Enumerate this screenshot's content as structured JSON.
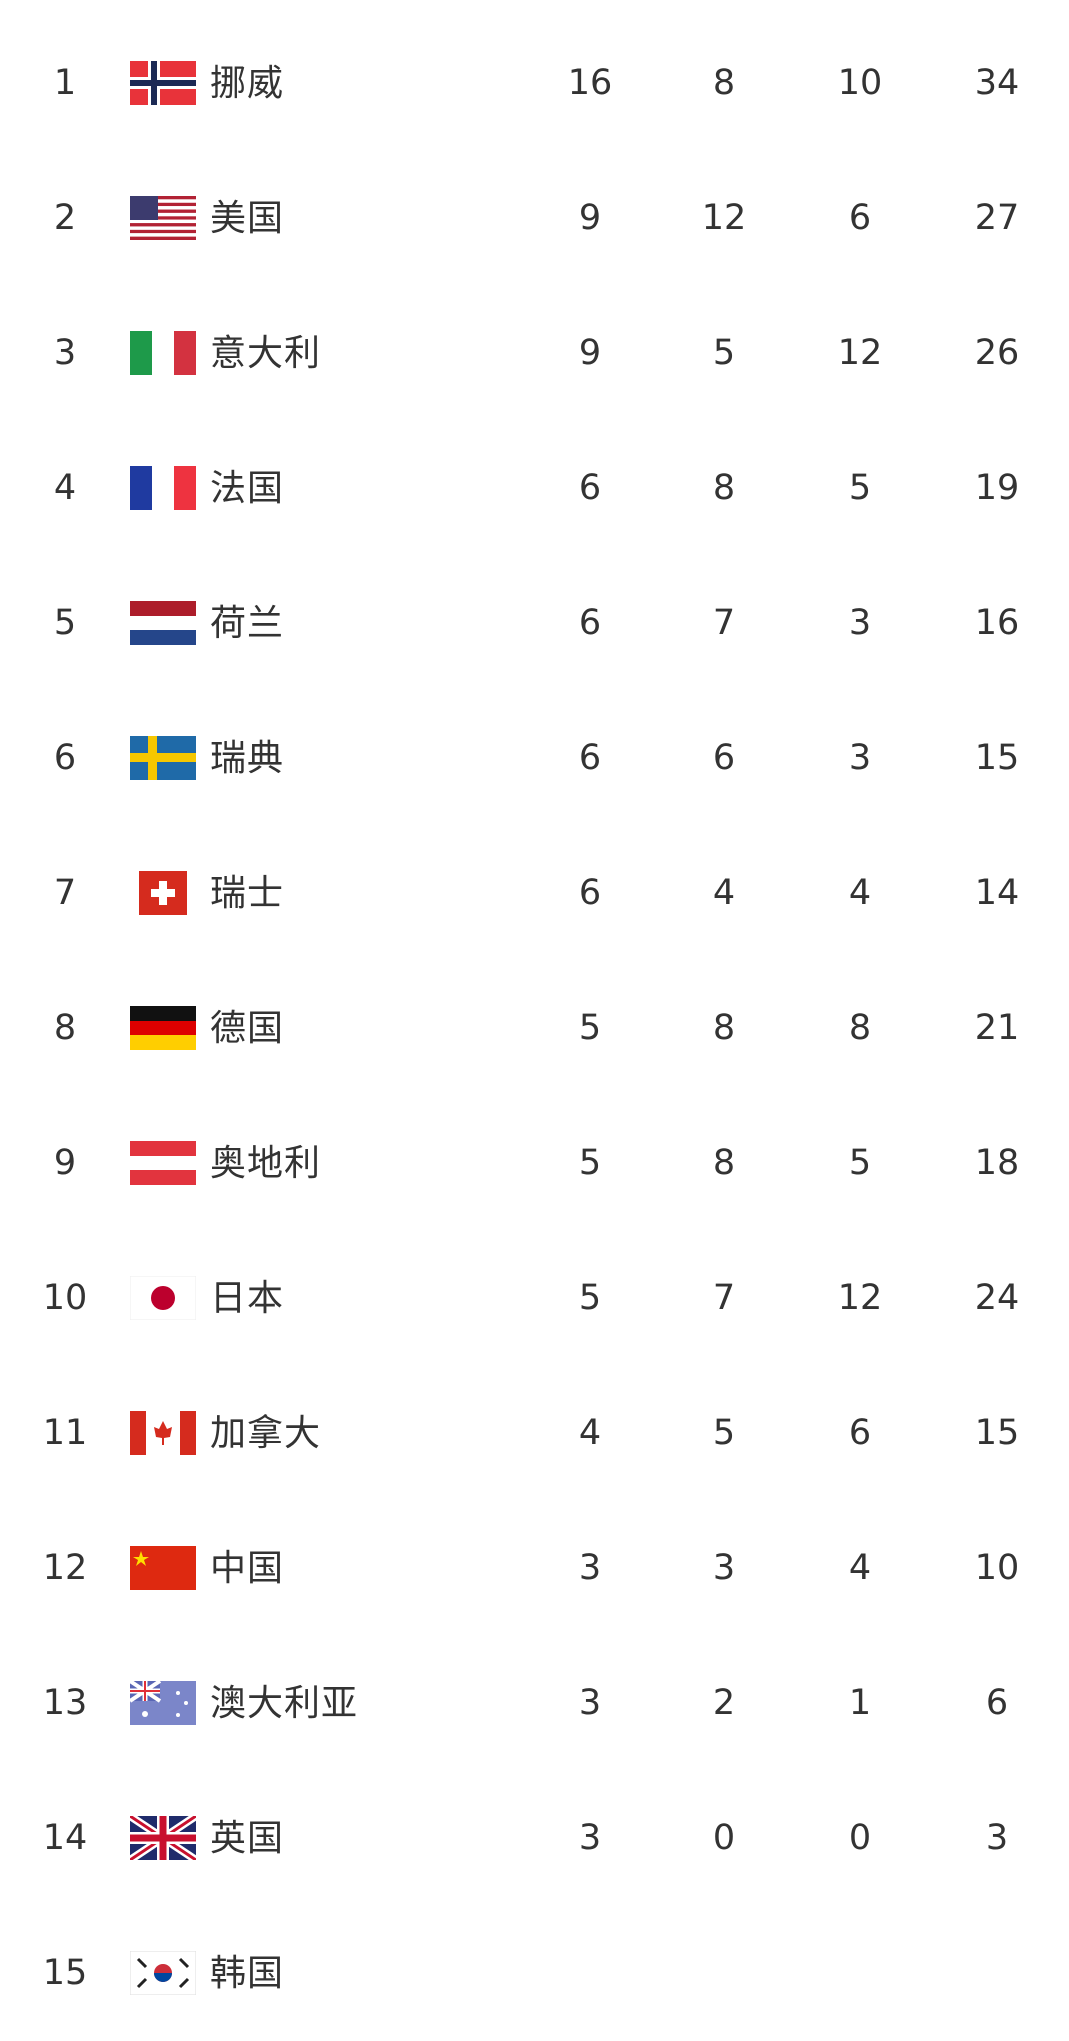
{
  "medal_table": {
    "rows": [
      {
        "rank": "1",
        "country": "挪威",
        "flag": "norway-flag",
        "gold": "16",
        "silver": "8",
        "bronze": "10",
        "total": "34"
      },
      {
        "rank": "2",
        "country": "美国",
        "flag": "usa-flag",
        "gold": "9",
        "silver": "12",
        "bronze": "6",
        "total": "27"
      },
      {
        "rank": "3",
        "country": "意大利",
        "flag": "italy-flag",
        "gold": "9",
        "silver": "5",
        "bronze": "12",
        "total": "26"
      },
      {
        "rank": "4",
        "country": "法国",
        "flag": "france-flag",
        "gold": "6",
        "silver": "8",
        "bronze": "5",
        "total": "19"
      },
      {
        "rank": "5",
        "country": "荷兰",
        "flag": "netherlands-flag",
        "gold": "6",
        "silver": "7",
        "bronze": "3",
        "total": "16"
      },
      {
        "rank": "6",
        "country": "瑞典",
        "flag": "sweden-flag",
        "gold": "6",
        "silver": "6",
        "bronze": "3",
        "total": "15"
      },
      {
        "rank": "7",
        "country": "瑞士",
        "flag": "switzerland-flag",
        "gold": "6",
        "silver": "4",
        "bronze": "4",
        "total": "14"
      },
      {
        "rank": "8",
        "country": "德国",
        "flag": "germany-flag",
        "gold": "5",
        "silver": "8",
        "bronze": "8",
        "total": "21"
      },
      {
        "rank": "9",
        "country": "奥地利",
        "flag": "austria-flag",
        "gold": "5",
        "silver": "8",
        "bronze": "5",
        "total": "18"
      },
      {
        "rank": "10",
        "country": "日本",
        "flag": "japan-flag",
        "gold": "5",
        "silver": "7",
        "bronze": "12",
        "total": "24"
      },
      {
        "rank": "11",
        "country": "加拿大",
        "flag": "canada-flag",
        "gold": "4",
        "silver": "5",
        "bronze": "6",
        "total": "15"
      },
      {
        "rank": "12",
        "country": "中国",
        "flag": "china-flag",
        "gold": "3",
        "silver": "3",
        "bronze": "4",
        "total": "10"
      },
      {
        "rank": "13",
        "country": "澳大利亚",
        "flag": "australia-flag",
        "gold": "3",
        "silver": "2",
        "bronze": "1",
        "total": "6"
      },
      {
        "rank": "14",
        "country": "英国",
        "flag": "uk-flag",
        "gold": "3",
        "silver": "0",
        "bronze": "0",
        "total": "3"
      },
      {
        "rank": "15",
        "country": "韩国",
        "flag": "south-korea-flag"
      }
    ]
  }
}
